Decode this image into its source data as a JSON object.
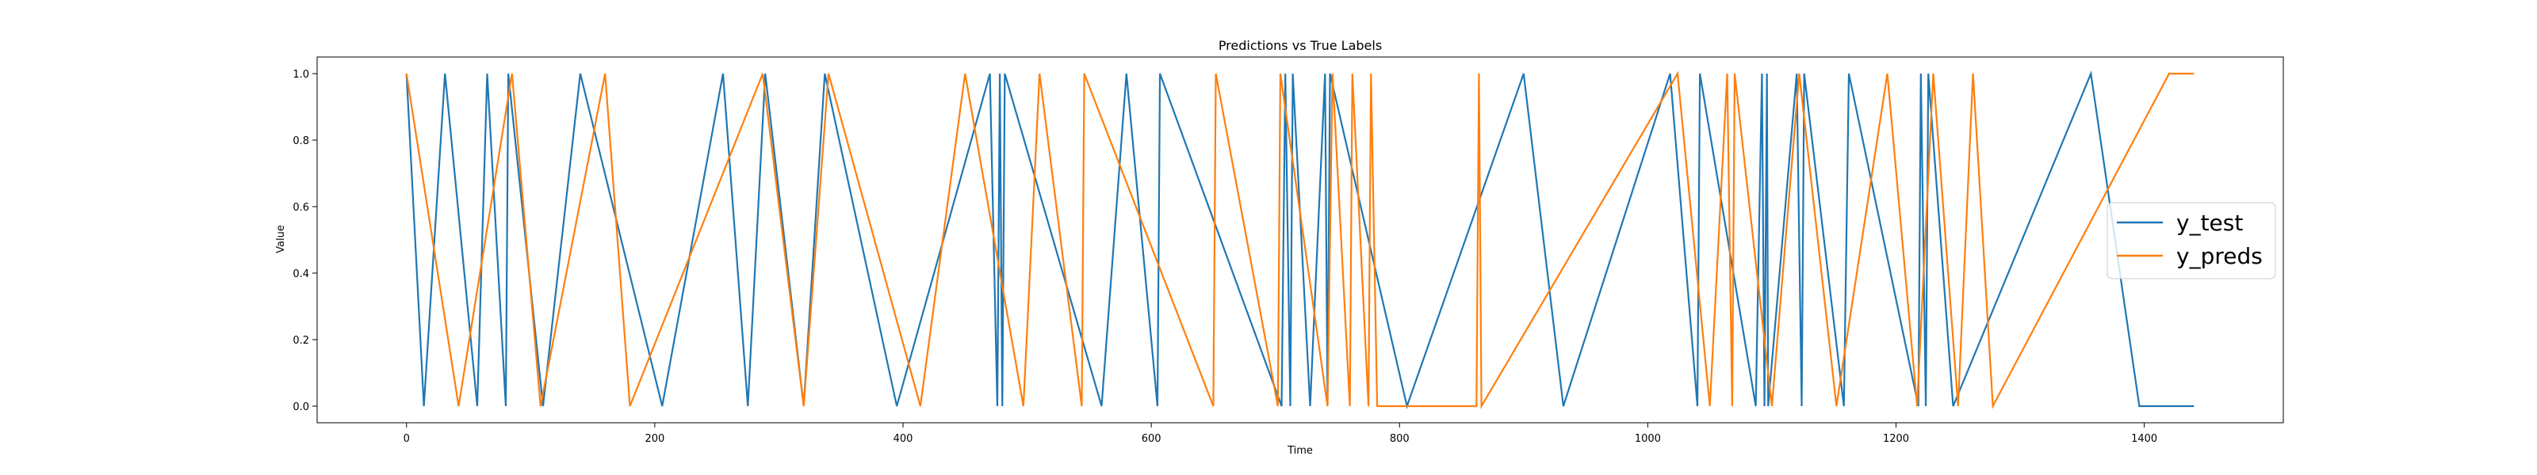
{
  "chart_data": {
    "type": "line",
    "title": "Predictions vs True Labels",
    "xlabel": "Time",
    "ylabel": "Value",
    "xlim": [
      -72,
      1512
    ],
    "ylim": [
      -0.05,
      1.05
    ],
    "xticks": [
      0,
      200,
      400,
      600,
      800,
      1000,
      1200,
      1400
    ],
    "yticks": [
      0.0,
      0.2,
      0.4,
      0.6,
      0.8,
      1.0
    ],
    "ytick_labels": [
      "0.0",
      "0.2",
      "0.4",
      "0.6",
      "0.8",
      "1.0"
    ],
    "legend_position": "center-right",
    "series": [
      {
        "name": "y_test",
        "color": "#1f77b4",
        "transitions": [
          [
            0,
            1
          ],
          [
            14,
            0
          ],
          [
            31,
            1
          ],
          [
            57,
            0
          ],
          [
            65,
            1
          ],
          [
            80,
            0
          ],
          [
            82,
            1
          ],
          [
            110,
            0
          ],
          [
            140,
            1
          ],
          [
            206,
            0
          ],
          [
            255,
            1
          ],
          [
            275,
            0
          ],
          [
            289,
            1
          ],
          [
            320,
            0
          ],
          [
            337,
            1
          ],
          [
            395,
            0
          ],
          [
            470,
            1
          ],
          [
            476,
            0
          ],
          [
            478,
            1
          ],
          [
            480,
            0
          ],
          [
            482,
            1
          ],
          [
            560,
            0
          ],
          [
            580,
            1
          ],
          [
            605,
            0
          ],
          [
            607,
            1
          ],
          [
            705,
            0
          ],
          [
            708,
            1
          ],
          [
            712,
            0
          ],
          [
            714,
            1
          ],
          [
            728,
            0
          ],
          [
            740,
            1
          ],
          [
            742,
            0
          ],
          [
            744,
            1
          ],
          [
            806,
            0
          ],
          [
            900,
            1
          ],
          [
            932,
            0
          ],
          [
            1018,
            1
          ],
          [
            1040,
            0
          ],
          [
            1042,
            1
          ],
          [
            1087,
            0
          ],
          [
            1092,
            1
          ],
          [
            1094,
            0
          ],
          [
            1096,
            1
          ],
          [
            1097,
            0
          ],
          [
            1120,
            1
          ],
          [
            1124,
            0
          ],
          [
            1126,
            1
          ],
          [
            1158,
            0
          ],
          [
            1162,
            1
          ],
          [
            1218,
            0
          ],
          [
            1220,
            1
          ],
          [
            1224,
            0
          ],
          [
            1226,
            1
          ],
          [
            1246,
            0
          ],
          [
            1357,
            1
          ],
          [
            1396,
            0
          ],
          [
            1440,
            0
          ]
        ]
      },
      {
        "name": "y_preds",
        "color": "#ff7f0e",
        "transitions": [
          [
            0,
            1
          ],
          [
            42,
            0
          ],
          [
            85,
            1
          ],
          [
            108,
            0
          ],
          [
            160,
            1
          ],
          [
            180,
            0
          ],
          [
            287,
            1
          ],
          [
            320,
            0
          ],
          [
            340,
            1
          ],
          [
            414,
            0
          ],
          [
            450,
            1
          ],
          [
            497,
            0
          ],
          [
            510,
            1
          ],
          [
            544,
            0
          ],
          [
            546,
            1
          ],
          [
            650,
            0
          ],
          [
            652,
            1
          ],
          [
            702,
            0
          ],
          [
            704,
            1
          ],
          [
            742,
            0
          ],
          [
            746,
            1
          ],
          [
            760,
            0
          ],
          [
            762,
            1
          ],
          [
            775,
            0
          ],
          [
            777,
            1
          ],
          [
            782,
            0
          ],
          [
            862,
            0
          ],
          [
            864,
            1
          ],
          [
            866,
            0
          ],
          [
            1024,
            1
          ],
          [
            1050,
            0
          ],
          [
            1064,
            1
          ],
          [
            1068,
            0
          ],
          [
            1070,
            1
          ],
          [
            1100,
            0
          ],
          [
            1122,
            1
          ],
          [
            1152,
            0
          ],
          [
            1193,
            1
          ],
          [
            1217,
            0
          ],
          [
            1230,
            1
          ],
          [
            1250,
            0
          ],
          [
            1262,
            1
          ],
          [
            1278,
            0
          ],
          [
            1420,
            1
          ],
          [
            1440,
            1
          ]
        ]
      }
    ]
  }
}
